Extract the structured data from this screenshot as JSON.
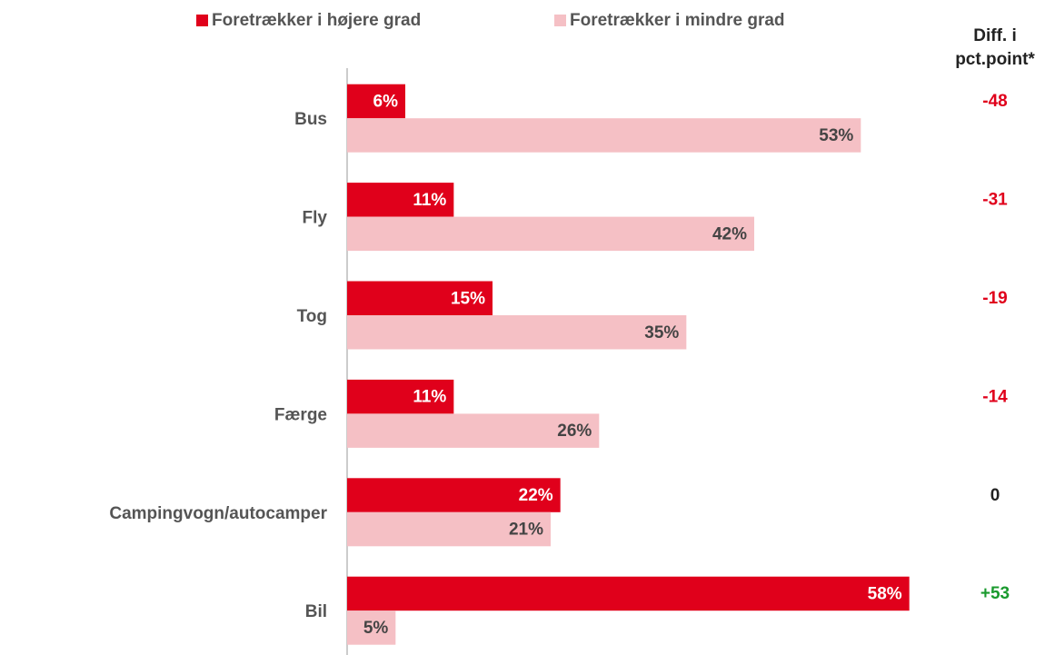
{
  "chart_data": {
    "type": "hbar",
    "categories": [
      "Bus",
      "Fly",
      "Tog",
      "Færge",
      "Campingvogn/autocamper",
      "Bil"
    ],
    "series": [
      {
        "name": "Foretrækker i højere grad",
        "color": "#e0001b",
        "label_color": "#ffffff",
        "values": [
          6,
          11,
          15,
          11,
          22,
          58
        ],
        "value_labels": [
          "6%",
          "11%",
          "15%",
          "11%",
          "22%",
          "58%"
        ]
      },
      {
        "name": "Foretrækker i mindre grad",
        "color": "#f5c0c5",
        "label_color": "#444444",
        "values": [
          53,
          42,
          35,
          26,
          21,
          5
        ],
        "value_labels": [
          "53%",
          "42%",
          "35%",
          "26%",
          "21%",
          "5%"
        ]
      }
    ],
    "xlim": [
      0,
      60
    ],
    "legend": "top",
    "diff": {
      "title": [
        "Diff. i",
        "pct.point*"
      ],
      "values": [
        -48,
        -31,
        -19,
        -14,
        0,
        53
      ],
      "value_labels": [
        "-48",
        "-31",
        "-19",
        "-14",
        "0",
        "+53"
      ],
      "negative_color": "#e0001b",
      "zero_color": "#222222",
      "positive_color": "#1a9a2e"
    }
  }
}
